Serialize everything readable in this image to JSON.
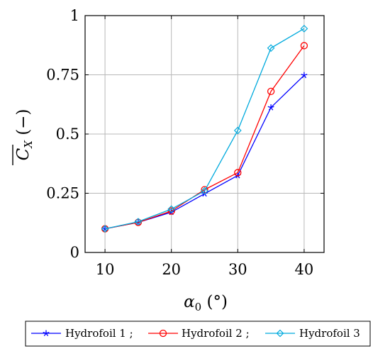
{
  "chart_data": {
    "type": "line",
    "xlabel": "α₀ (°)",
    "ylabel": "C̅X (−)",
    "xlim": [
      7,
      43
    ],
    "ylim": [
      0,
      1
    ],
    "xticks": [
      "10",
      "20",
      "30",
      "40"
    ],
    "yticks": [
      "0",
      "0.25",
      "0.5",
      "0.75",
      "1"
    ],
    "grid": true,
    "legend_position": "bottom",
    "x": [
      10,
      15,
      20,
      25,
      30,
      35,
      40
    ],
    "series": [
      {
        "name": "Hydrofoil 1 ;",
        "color": "#0000ff",
        "marker": "star",
        "values": [
          0.1,
          0.127,
          0.17,
          0.248,
          0.325,
          0.612,
          0.748
        ]
      },
      {
        "name": "Hydrofoil 2 ;",
        "color": "#ff0000",
        "marker": "circle",
        "values": [
          0.1,
          0.127,
          0.175,
          0.265,
          0.337,
          0.68,
          0.873
        ]
      },
      {
        "name": "Hydrofoil 3",
        "color": "#00aadd",
        "marker": "diamond",
        "values": [
          0.1,
          0.13,
          0.183,
          0.26,
          0.515,
          0.863,
          0.945
        ]
      }
    ]
  }
}
